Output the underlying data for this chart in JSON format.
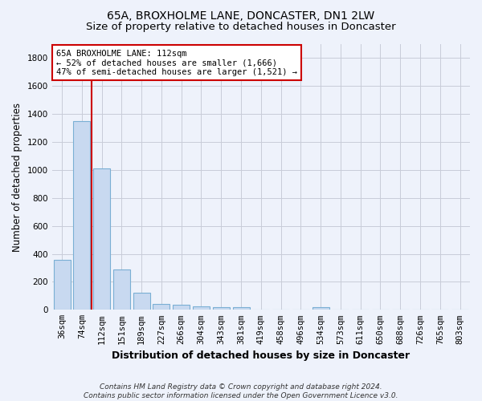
{
  "title": "65A, BROXHOLME LANE, DONCASTER, DN1 2LW",
  "subtitle": "Size of property relative to detached houses in Doncaster",
  "xlabel": "Distribution of detached houses by size in Doncaster",
  "ylabel": "Number of detached properties",
  "bar_labels": [
    "36sqm",
    "74sqm",
    "112sqm",
    "151sqm",
    "189sqm",
    "227sqm",
    "266sqm",
    "304sqm",
    "343sqm",
    "381sqm",
    "419sqm",
    "458sqm",
    "496sqm",
    "534sqm",
    "573sqm",
    "611sqm",
    "650sqm",
    "688sqm",
    "726sqm",
    "765sqm",
    "803sqm"
  ],
  "bar_values": [
    355,
    1350,
    1010,
    290,
    125,
    40,
    35,
    25,
    20,
    20,
    0,
    0,
    0,
    20,
    0,
    0,
    0,
    0,
    0,
    0,
    0
  ],
  "bar_color": "#c8d9f0",
  "bar_edge_color": "#7aafd4",
  "bar_width": 0.85,
  "vline_x": 1.5,
  "vline_color": "#cc0000",
  "annotation_text": "65A BROXHOLME LANE: 112sqm\n← 52% of detached houses are smaller (1,666)\n47% of semi-detached houses are larger (1,521) →",
  "annotation_box_color": "#ffffff",
  "annotation_box_edge_color": "#cc0000",
  "ylim": [
    0,
    1900
  ],
  "yticks": [
    0,
    200,
    400,
    600,
    800,
    1000,
    1200,
    1400,
    1600,
    1800
  ],
  "background_color": "#eef2fb",
  "grid_color": "#c8ccd8",
  "footer_text": "Contains HM Land Registry data © Crown copyright and database right 2024.\nContains public sector information licensed under the Open Government Licence v3.0.",
  "title_fontsize": 10,
  "subtitle_fontsize": 9.5,
  "xlabel_fontsize": 9,
  "ylabel_fontsize": 8.5,
  "tick_fontsize": 7.5,
  "annotation_fontsize": 7.5,
  "footer_fontsize": 6.5
}
